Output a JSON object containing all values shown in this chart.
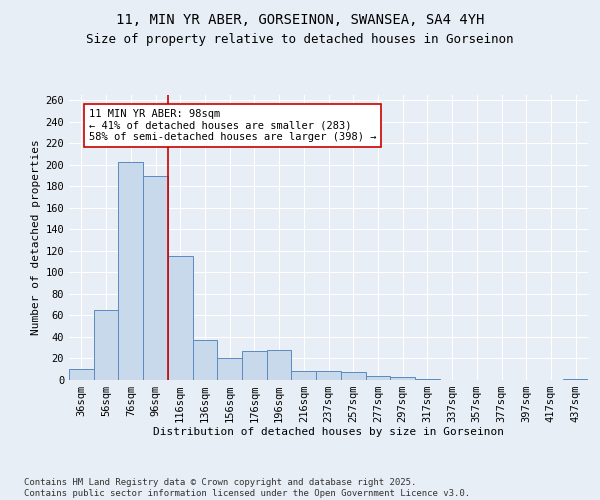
{
  "title_line1": "11, MIN YR ABER, GORSEINON, SWANSEA, SA4 4YH",
  "title_line2": "Size of property relative to detached houses in Gorseinon",
  "xlabel": "Distribution of detached houses by size in Gorseinon",
  "ylabel": "Number of detached properties",
  "categories": [
    "36sqm",
    "56sqm",
    "76sqm",
    "96sqm",
    "116sqm",
    "136sqm",
    "156sqm",
    "176sqm",
    "196sqm",
    "216sqm",
    "237sqm",
    "257sqm",
    "277sqm",
    "297sqm",
    "317sqm",
    "337sqm",
    "357sqm",
    "377sqm",
    "397sqm",
    "417sqm",
    "437sqm"
  ],
  "values": [
    10,
    65,
    203,
    190,
    115,
    37,
    20,
    27,
    28,
    8,
    8,
    7,
    4,
    3,
    1,
    0,
    0,
    0,
    0,
    0,
    1
  ],
  "bar_color": "#c9d9ec",
  "bar_edge_color": "#5a8bbf",
  "vline_x_index": 3,
  "vline_color": "#cc0000",
  "annotation_text": "11 MIN YR ABER: 98sqm\n← 41% of detached houses are smaller (283)\n58% of semi-detached houses are larger (398) →",
  "annotation_box_color": "#ffffff",
  "annotation_box_edge_color": "#cc0000",
  "ylim": [
    0,
    265
  ],
  "yticks": [
    0,
    20,
    40,
    60,
    80,
    100,
    120,
    140,
    160,
    180,
    200,
    220,
    240,
    260
  ],
  "background_color": "#e8eef5",
  "plot_bg_color": "#e8eef5",
  "footer_text": "Contains HM Land Registry data © Crown copyright and database right 2025.\nContains public sector information licensed under the Open Government Licence v3.0.",
  "title_fontsize": 10,
  "subtitle_fontsize": 9,
  "axis_label_fontsize": 8,
  "tick_fontsize": 7.5,
  "annotation_fontsize": 7.5,
  "footer_fontsize": 6.5
}
